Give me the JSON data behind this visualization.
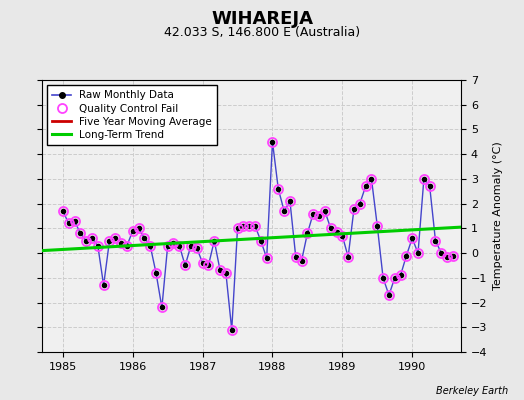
{
  "title": "WIHAREJA",
  "subtitle": "42.033 S, 146.800 E (Australia)",
  "ylabel": "Temperature Anomaly (°C)",
  "credit": "Berkeley Earth",
  "ylim": [
    -4,
    7
  ],
  "yticks": [
    -4,
    -3,
    -2,
    -1,
    0,
    1,
    2,
    3,
    4,
    5,
    6,
    7
  ],
  "xlim": [
    1984.7,
    1990.7
  ],
  "xticks": [
    1985,
    1986,
    1987,
    1988,
    1989,
    1990
  ],
  "bg_color": "#e8e8e8",
  "plot_bg_color": "#f0f0f0",
  "raw_x": [
    1985.0,
    1985.083,
    1985.167,
    1985.25,
    1985.333,
    1985.417,
    1985.5,
    1985.583,
    1985.667,
    1985.75,
    1985.833,
    1985.917,
    1986.0,
    1986.083,
    1986.167,
    1986.25,
    1986.333,
    1986.417,
    1986.5,
    1986.583,
    1986.667,
    1986.75,
    1986.833,
    1986.917,
    1987.0,
    1987.083,
    1987.167,
    1987.25,
    1987.333,
    1987.417,
    1987.5,
    1987.583,
    1987.667,
    1987.75,
    1987.833,
    1987.917,
    1988.0,
    1988.083,
    1988.167,
    1988.25,
    1988.333,
    1988.417,
    1988.5,
    1988.583,
    1988.667,
    1988.75,
    1988.833,
    1988.917,
    1989.0,
    1989.083,
    1989.167,
    1989.25,
    1989.333,
    1989.417,
    1989.5,
    1989.583,
    1989.667,
    1989.75,
    1989.833,
    1989.917,
    1990.0,
    1990.083,
    1990.167,
    1990.25,
    1990.333,
    1990.417,
    1990.5,
    1990.583
  ],
  "raw_y": [
    1.7,
    1.2,
    1.3,
    0.8,
    0.5,
    0.6,
    0.3,
    -1.3,
    0.5,
    0.6,
    0.4,
    0.3,
    0.9,
    1.0,
    0.6,
    0.3,
    -0.8,
    -2.2,
    0.3,
    0.4,
    0.3,
    -0.5,
    0.3,
    0.2,
    -0.4,
    -0.5,
    0.5,
    -0.7,
    -0.8,
    -3.1,
    1.0,
    1.1,
    1.1,
    1.1,
    0.5,
    -0.2,
    4.5,
    2.6,
    1.7,
    2.1,
    -0.15,
    -0.3,
    0.8,
    1.6,
    1.5,
    1.7,
    1.0,
    0.85,
    0.7,
    -0.15,
    1.8,
    2.0,
    2.7,
    3.0,
    1.1,
    -1.0,
    -1.7,
    -1.0,
    -0.9,
    -0.1,
    0.6,
    0.0,
    3.0,
    2.7,
    0.5,
    0.0,
    -0.15,
    -0.1
  ],
  "trend_x": [
    1984.7,
    1990.7
  ],
  "trend_y": [
    0.1,
    1.05
  ],
  "line_color": "#4444cc",
  "dot_color": "#000000",
  "qc_color": "#ff44ff",
  "trend_color": "#00cc00",
  "ma_color": "#cc0000",
  "title_fontsize": 13,
  "subtitle_fontsize": 9,
  "legend_fontsize": 7.5,
  "tick_fontsize": 8,
  "ylabel_fontsize": 8,
  "credit_fontsize": 7
}
